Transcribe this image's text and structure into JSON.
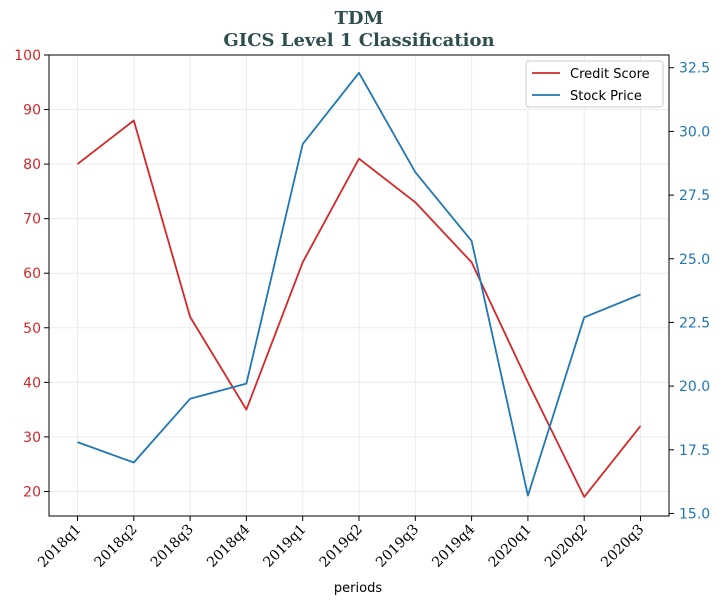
{
  "chart_data": {
    "type": "line",
    "title": "TDM",
    "subtitle": "GICS Level 1 Classification",
    "xlabel": "periods",
    "categories": [
      "2018q1",
      "2018q2",
      "2018q3",
      "2018q4",
      "2019q1",
      "2019q2",
      "2019q3",
      "2019q4",
      "2020q1",
      "2020q2",
      "2020q3"
    ],
    "y_left": {
      "lim": [
        15.5,
        100
      ],
      "ticks": [
        20,
        30,
        40,
        50,
        60,
        70,
        80,
        90,
        100
      ]
    },
    "y_right": {
      "lim": [
        14.9,
        33.0
      ],
      "ticks": [
        "15.0",
        "17.5",
        "20.0",
        "22.5",
        "25.0",
        "27.5",
        "30.0",
        "32.5"
      ]
    },
    "series": [
      {
        "name": "Credit Score",
        "axis": "left",
        "color": "#d62728",
        "values": [
          80,
          88,
          52,
          35,
          62,
          81,
          73,
          62,
          40,
          19,
          32
        ]
      },
      {
        "name": "Stock Price",
        "axis": "right",
        "color": "#1f77b4",
        "values": [
          17.8,
          17.0,
          19.5,
          20.1,
          29.5,
          32.3,
          28.4,
          25.7,
          15.7,
          22.7,
          23.6
        ]
      }
    ],
    "grid": true,
    "legend": "top-right"
  }
}
